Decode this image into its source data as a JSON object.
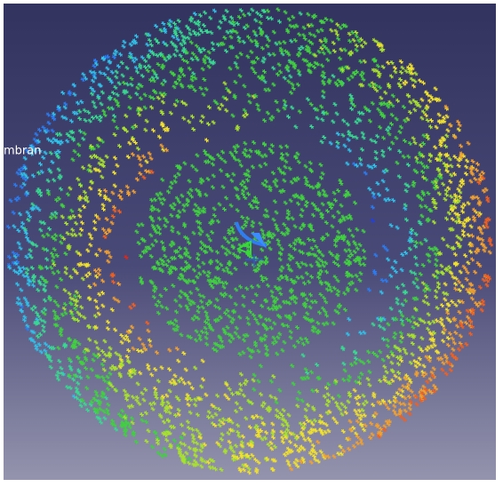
{
  "label": "mbran"
}
